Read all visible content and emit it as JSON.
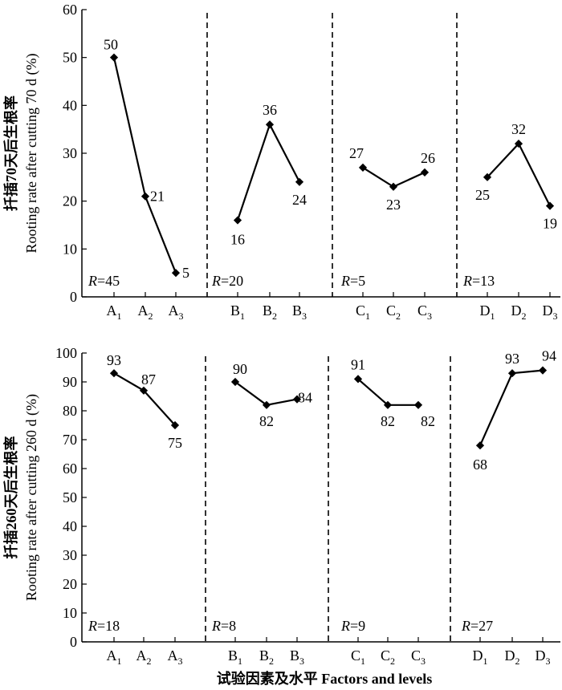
{
  "colors": {
    "line": "#000000",
    "background": "#ffffff"
  },
  "chart_data": [
    {
      "type": "line",
      "id": "top",
      "ylabel_cn": "扦插70天后生根率",
      "ylabel_en": "Rooting rate after cutting 70 d (%)",
      "ylim": [
        0,
        60
      ],
      "yticks": [
        0,
        10,
        20,
        30,
        40,
        50,
        60
      ],
      "grid": false,
      "groups": [
        {
          "factor": "A",
          "levels": [
            "A1",
            "A2",
            "A3"
          ],
          "values": [
            50,
            21,
            5
          ],
          "labels": [
            "50",
            "21",
            "5"
          ],
          "range_label": "R=45"
        },
        {
          "factor": "B",
          "levels": [
            "B1",
            "B2",
            "B3"
          ],
          "values": [
            16,
            36,
            24
          ],
          "labels": [
            "16",
            "36",
            "24"
          ],
          "range_label": "R=20"
        },
        {
          "factor": "C",
          "levels": [
            "C1",
            "C2",
            "C3"
          ],
          "values": [
            27,
            23,
            26
          ],
          "labels": [
            "27",
            "23",
            "26"
          ],
          "range_label": "R=5"
        },
        {
          "factor": "D",
          "levels": [
            "D1",
            "D2",
            "D3"
          ],
          "values": [
            25,
            32,
            19
          ],
          "labels": [
            "25",
            "32",
            "19"
          ],
          "range_label": "R=13"
        }
      ]
    },
    {
      "type": "line",
      "id": "bottom",
      "ylabel_cn": "扦插260天后生根率",
      "ylabel_en": "Rooting rate after cutting 260 d (%)",
      "ylim": [
        0,
        100
      ],
      "yticks": [
        0,
        10,
        20,
        30,
        40,
        50,
        60,
        70,
        80,
        90,
        100
      ],
      "grid": false,
      "xlabel": "试验因素及水平 Factors and levels",
      "groups": [
        {
          "factor": "A",
          "levels": [
            "A1",
            "A2",
            "A3"
          ],
          "values": [
            93,
            87,
            75
          ],
          "labels": [
            "93",
            "87",
            "75"
          ],
          "range_label": "R=18"
        },
        {
          "factor": "B",
          "levels": [
            "B1",
            "B2",
            "B3"
          ],
          "values": [
            90,
            82,
            84
          ],
          "labels": [
            "90",
            "82",
            "84"
          ],
          "range_label": "R=8"
        },
        {
          "factor": "C",
          "levels": [
            "C1",
            "C2",
            "C3"
          ],
          "values": [
            91,
            82,
            82
          ],
          "labels": [
            "91",
            "82",
            "82"
          ],
          "range_label": "R=9"
        },
        {
          "factor": "D",
          "levels": [
            "D1",
            "D2",
            "D3"
          ],
          "values": [
            68,
            93,
            94
          ],
          "labels": [
            "68",
            "93",
            "94"
          ],
          "range_label": "R=27"
        }
      ]
    }
  ]
}
